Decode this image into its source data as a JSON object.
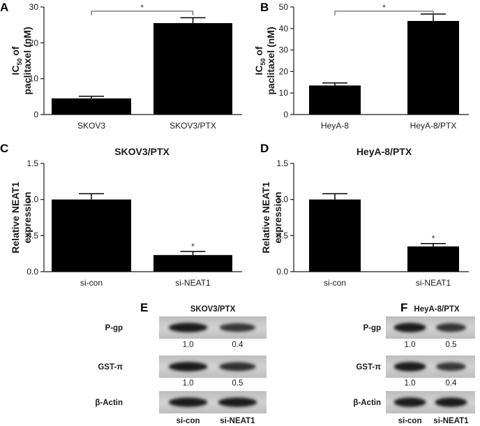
{
  "panels": [
    {
      "letter": "A",
      "title": "",
      "ylabel": [
        "IC50 of",
        "paclitaxel (nM)"
      ],
      "ylabel_sub": true
    },
    {
      "letter": "B",
      "title": "",
      "ylabel": [
        "IC50 of",
        "paclitaxel (nM)"
      ],
      "ylabel_sub": true
    },
    {
      "letter": "C",
      "title": "SKOV3/PTX",
      "ylabel": [
        "Relative NEAT1",
        "expression"
      ],
      "ylabel_sub": false
    },
    {
      "letter": "D",
      "title": "HeyA-8/PTX",
      "ylabel": [
        "Relative NEAT1",
        "expression"
      ],
      "ylabel_sub": false
    }
  ],
  "chart_data": [
    {
      "type": "bar",
      "panel": "A",
      "categories": [
        "SKOV3",
        "SKOV3/PTX"
      ],
      "values": [
        4.5,
        25.5
      ],
      "errors": [
        0.6,
        1.5
      ],
      "ylim": [
        0,
        30
      ],
      "yticks": [
        0,
        10,
        20,
        30
      ],
      "ylabel": "IC50 of paclitaxel (nM)",
      "xlabel": "",
      "significance": [
        {
          "between": [
            0,
            1
          ],
          "label": "*",
          "type": "bracket"
        }
      ]
    },
    {
      "type": "bar",
      "panel": "B",
      "categories": [
        "HeyA-8",
        "HeyA-8/PTX"
      ],
      "values": [
        13.5,
        43.5
      ],
      "errors": [
        1.2,
        3.2
      ],
      "ylim": [
        0,
        50
      ],
      "yticks": [
        0,
        10,
        20,
        30,
        40,
        50
      ],
      "ylabel": "IC50 of paclitaxel (nM)",
      "xlabel": "",
      "significance": [
        {
          "between": [
            0,
            1
          ],
          "label": "*",
          "type": "bracket"
        }
      ]
    },
    {
      "type": "bar",
      "panel": "C",
      "title": "SKOV3/PTX",
      "categories": [
        "si-con",
        "si-NEAT1"
      ],
      "values": [
        1.0,
        0.23
      ],
      "errors": [
        0.08,
        0.05
      ],
      "ylim": [
        0,
        1.5
      ],
      "yticks": [
        "0.0",
        "0.5",
        "1.0",
        "1.5"
      ],
      "ylabel": "Relative NEAT1 expression",
      "xlabel": "",
      "significance": [
        {
          "bar": 1,
          "label": "*",
          "type": "single"
        }
      ]
    },
    {
      "type": "bar",
      "panel": "D",
      "title": "HeyA-8/PTX",
      "categories": [
        "si-con",
        "si-NEAT1"
      ],
      "values": [
        1.0,
        0.35
      ],
      "errors": [
        0.08,
        0.04
      ],
      "ylim": [
        0,
        1.5
      ],
      "yticks": [
        "0.0",
        "0.5",
        "1.0",
        "1.5"
      ],
      "ylabel": "Relative NEAT1 expression",
      "xlabel": "",
      "significance": [
        {
          "bar": 1,
          "label": "*",
          "type": "single"
        }
      ]
    }
  ],
  "western_blots": [
    {
      "letter": "E",
      "title": "SKOV3/PTX",
      "lanes": [
        "si-con",
        "si-NEAT1"
      ],
      "rows": [
        {
          "label": "P-gp",
          "quant": [
            "1.0",
            "0.4"
          ],
          "band_strength": [
            1.0,
            0.7
          ]
        },
        {
          "label": "GST-π",
          "quant": [
            "1.0",
            "0.5"
          ],
          "band_strength": [
            1.0,
            0.8
          ]
        },
        {
          "label": "β-Actin",
          "quant": [],
          "band_strength": [
            1.0,
            1.0
          ]
        }
      ]
    },
    {
      "letter": "F",
      "title": "HeyA-8/PTX",
      "lanes": [
        "si-con",
        "si-NEAT1"
      ],
      "rows": [
        {
          "label": "P-gp",
          "quant": [
            "1.0",
            "0.5"
          ],
          "band_strength": [
            1.0,
            0.75
          ]
        },
        {
          "label": "GST-π",
          "quant": [
            "1.0",
            "0.4"
          ],
          "band_strength": [
            1.0,
            0.7
          ]
        },
        {
          "label": "β-Actin",
          "quant": [],
          "band_strength": [
            1.0,
            1.0
          ]
        }
      ]
    }
  ]
}
